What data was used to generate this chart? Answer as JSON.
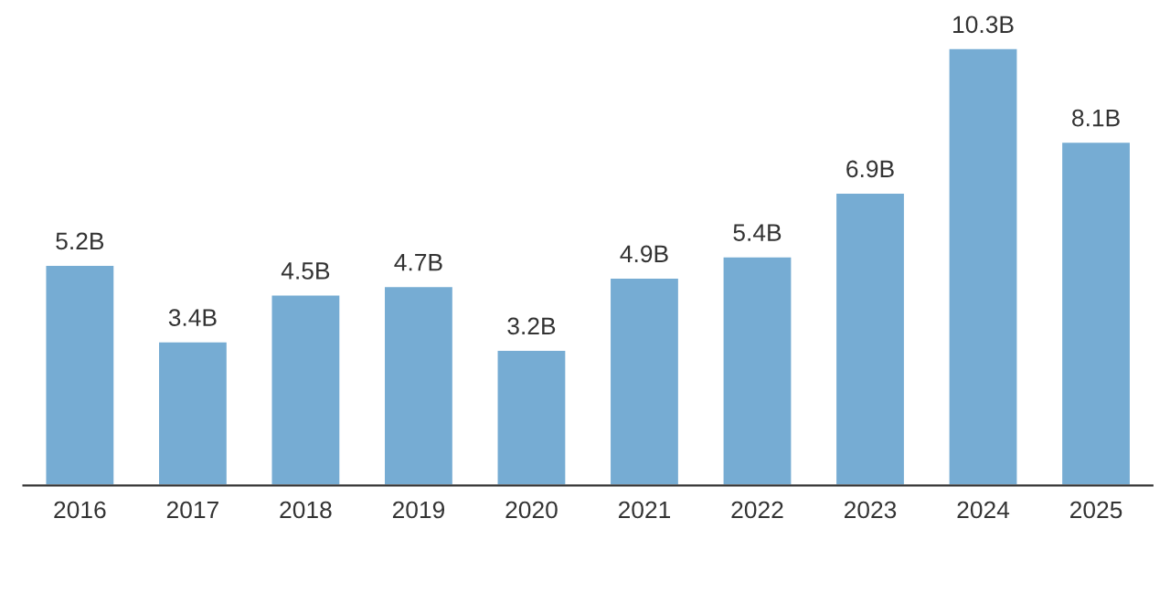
{
  "chart_data": {
    "type": "bar",
    "categories": [
      "2016",
      "2017",
      "2018",
      "2019",
      "2020",
      "2021",
      "2022",
      "2023",
      "2024",
      "2025"
    ],
    "values": [
      5.2,
      3.4,
      4.5,
      4.7,
      3.2,
      4.9,
      5.4,
      6.9,
      10.3,
      8.1
    ],
    "value_labels": [
      "5.2B",
      "3.4B",
      "4.5B",
      "4.7B",
      "3.2B",
      "4.9B",
      "5.4B",
      "6.9B",
      "10.3B",
      "8.1B"
    ],
    "color": "#76acd3",
    "grid": false
  }
}
